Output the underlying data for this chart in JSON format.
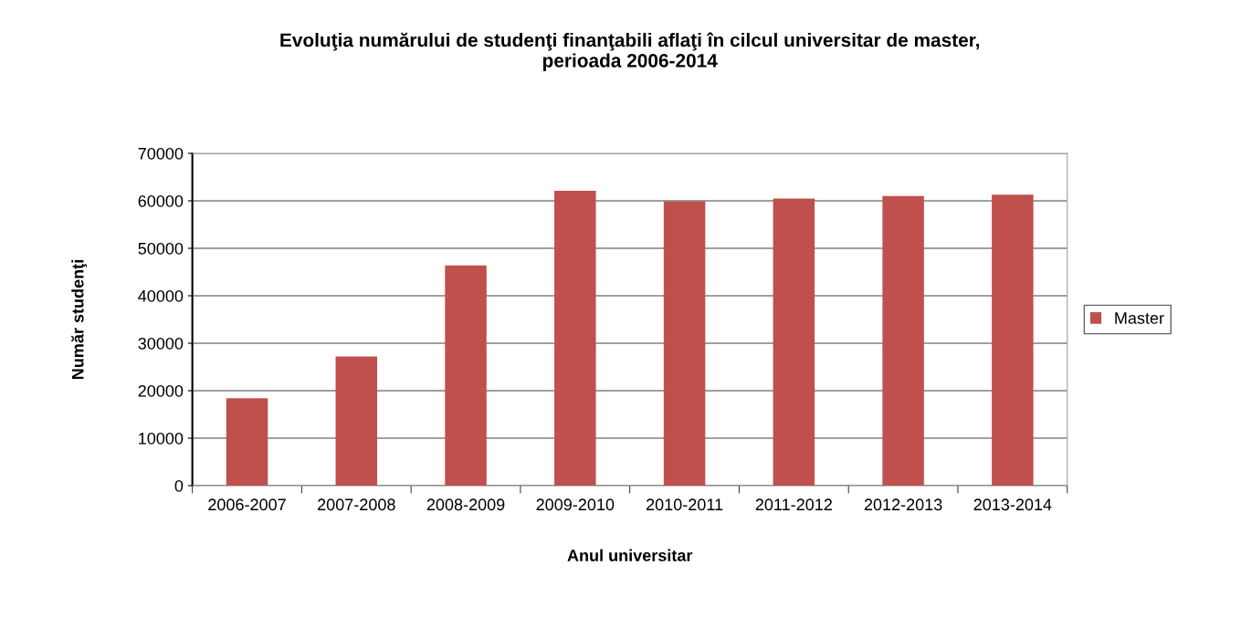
{
  "chart_data": {
    "type": "bar",
    "title": "Evoluţia numărului de studenţi finanţabili aflaţi în cilcul universitar de master,\nperioada 2006-2014",
    "xlabel": "Anul universitar",
    "ylabel": "Număr studenţi",
    "categories": [
      "2006-2007",
      "2007-2008",
      "2008-2009",
      "2009-2010",
      "2010-2011",
      "2011-2012",
      "2012-2013",
      "2013-2014"
    ],
    "series": [
      {
        "name": "Master",
        "color": "#c0504d",
        "values": [
          18400,
          27200,
          46400,
          62100,
          59900,
          60500,
          61000,
          61300
        ]
      }
    ],
    "ylim": [
      0,
      70000
    ],
    "yticks": [
      0,
      10000,
      20000,
      30000,
      40000,
      50000,
      60000,
      70000
    ],
    "grid": "y",
    "legend": "right"
  }
}
